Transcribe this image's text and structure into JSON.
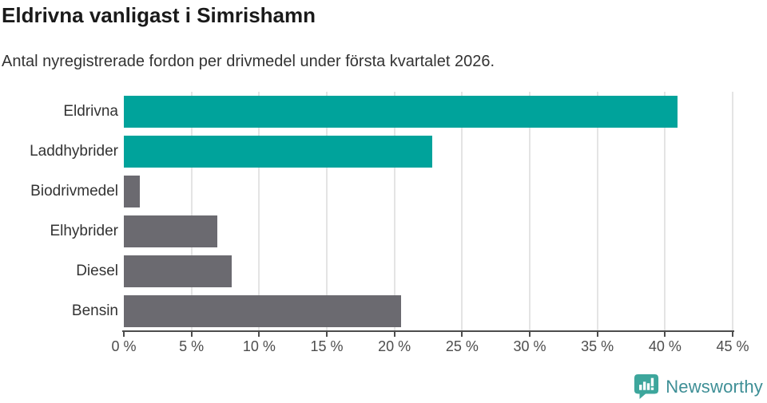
{
  "chart_data": {
    "type": "bar",
    "orientation": "horizontal",
    "title": "Eldrivna vanligast i Simrishamn",
    "subtitle": "Antal nyregistrerade fordon per drivmedel under första kvartalet 2026.",
    "categories": [
      "Eldrivna",
      "Laddhybrider",
      "Biodrivmedel",
      "Elhybrider",
      "Diesel",
      "Bensin"
    ],
    "values": [
      40.9,
      22.8,
      1.2,
      6.9,
      8.0,
      20.5
    ],
    "unit": "%",
    "bar_colors": [
      "#00a39b",
      "#00a39b",
      "#6b6a70",
      "#6b6a70",
      "#6b6a70",
      "#6b6a70"
    ],
    "xlim": [
      0,
      45
    ],
    "x_ticks": [
      0,
      5,
      10,
      15,
      20,
      25,
      30,
      35,
      40,
      45
    ],
    "x_tick_labels": [
      "0 %",
      "5 %",
      "10 %",
      "15 %",
      "20 %",
      "25 %",
      "30 %",
      "35 %",
      "40 %",
      "45 %"
    ],
    "grid": "vertical",
    "legend": "none",
    "xlabel": "",
    "ylabel": ""
  },
  "colors": {
    "highlight_bar": "#00a39b",
    "default_bar": "#6b6a70",
    "gridline": "#e4e4e4",
    "axis": "#4d4d4d",
    "title_text": "#1a1a1a",
    "body_text": "#333333"
  },
  "branding": {
    "logo_text": "Newsworthy",
    "logo_bubble_color": "#3da69c",
    "logo_text_color": "#3e8f96",
    "logo_icon": "speech-bubble-bar-chart-icon"
  }
}
